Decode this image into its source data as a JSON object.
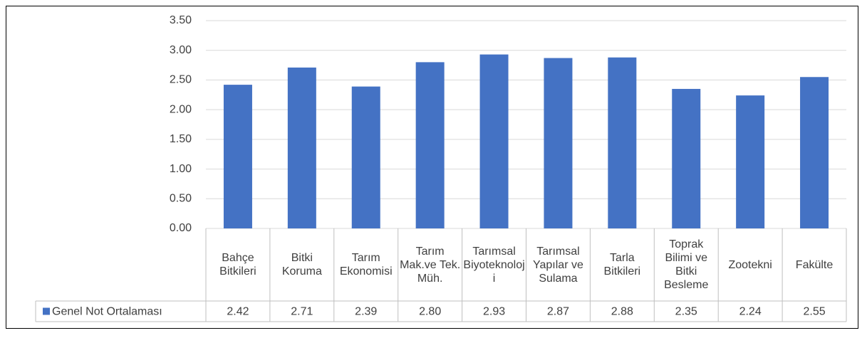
{
  "chart_data": {
    "type": "bar",
    "categories": [
      "Bahçe Bitkileri",
      "Bitki Koruma",
      "Tarım Ekonomisi",
      "Tarım Mak.ve Tek. Müh.",
      "Tarımsal Biyoteknoloji",
      "Tarımsal Yapılar ve Sulama",
      "Tarla Bitkileri",
      "Toprak Bilimi ve Bitki Besleme",
      "Zootekni",
      "Fakülte"
    ],
    "series": [
      {
        "name": "Genel Not Ortalaması",
        "color": "#4472c4",
        "values": [
          2.42,
          2.71,
          2.39,
          2.8,
          2.93,
          2.87,
          2.88,
          2.35,
          2.24,
          2.55
        ],
        "value_labels": [
          "2.42",
          "2.71",
          "2.39",
          "2.80",
          "2.93",
          "2.87",
          "2.88",
          "2.35",
          "2.24",
          "2.55"
        ]
      }
    ],
    "ylim": [
      0,
      3.5
    ],
    "yticks": [
      {
        "value": 0,
        "label": "0.00"
      },
      {
        "value": 0.5,
        "label": "0.50"
      },
      {
        "value": 1,
        "label": "1.00"
      },
      {
        "value": 1.5,
        "label": "1.50"
      },
      {
        "value": 2,
        "label": "2.00"
      },
      {
        "value": 2.5,
        "label": "2.50"
      },
      {
        "value": 3,
        "label": "3.00"
      },
      {
        "value": 3.5,
        "label": "3.50"
      }
    ],
    "grid": true
  }
}
